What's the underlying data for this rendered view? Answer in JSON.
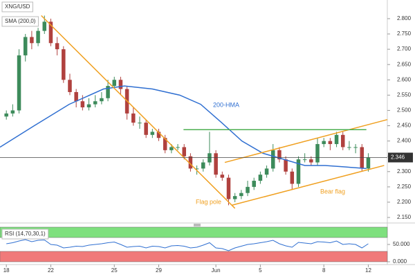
{
  "chart_data": [
    {
      "type": "candlestick",
      "title": "XNG/USD",
      "x": [
        0,
        1,
        2,
        3,
        4,
        5,
        6,
        7,
        8,
        9,
        10,
        11,
        12,
        13,
        14,
        15,
        16,
        17,
        18,
        19,
        20,
        21,
        22,
        23,
        24,
        25,
        26,
        27,
        28,
        29,
        30,
        31,
        32,
        33,
        34,
        35,
        36,
        37,
        38,
        39,
        40,
        41,
        42,
        43,
        44,
        45,
        46,
        47,
        48,
        49,
        50,
        51,
        52,
        53,
        54,
        55,
        56,
        57
      ],
      "open": [
        2.48,
        2.49,
        2.5,
        2.68,
        2.74,
        2.72,
        2.76,
        2.79,
        2.72,
        2.7,
        2.6,
        2.56,
        2.53,
        2.51,
        2.52,
        2.53,
        2.54,
        2.58,
        2.6,
        2.57,
        2.49,
        2.46,
        2.46,
        2.42,
        2.43,
        2.41,
        2.37,
        2.38,
        2.38,
        2.35,
        2.31,
        2.31,
        2.33,
        2.36,
        2.29,
        2.28,
        2.21,
        2.22,
        2.23,
        2.25,
        2.27,
        2.29,
        2.31,
        2.37,
        2.34,
        2.3,
        2.26,
        2.34,
        2.34,
        2.33,
        2.39,
        2.4,
        2.39,
        2.42,
        2.38,
        2.38,
        2.38,
        2.31
      ],
      "high": [
        2.5,
        2.52,
        2.7,
        2.75,
        2.76,
        2.77,
        2.81,
        2.8,
        2.74,
        2.71,
        2.62,
        2.57,
        2.55,
        2.54,
        2.55,
        2.56,
        2.6,
        2.61,
        2.61,
        2.58,
        2.51,
        2.48,
        2.47,
        2.44,
        2.44,
        2.42,
        2.39,
        2.39,
        2.39,
        2.36,
        2.32,
        2.34,
        2.43,
        2.37,
        2.3,
        2.29,
        2.23,
        2.24,
        2.27,
        2.28,
        2.3,
        2.32,
        2.39,
        2.38,
        2.35,
        2.31,
        2.35,
        2.36,
        2.35,
        2.41,
        2.41,
        2.41,
        2.43,
        2.43,
        2.4,
        2.39,
        2.39,
        2.36
      ],
      "low": [
        2.47,
        2.48,
        2.49,
        2.66,
        2.7,
        2.71,
        2.75,
        2.71,
        2.68,
        2.59,
        2.55,
        2.51,
        2.5,
        2.5,
        2.51,
        2.52,
        2.53,
        2.57,
        2.55,
        2.47,
        2.45,
        2.44,
        2.41,
        2.41,
        2.4,
        2.36,
        2.36,
        2.37,
        2.34,
        2.3,
        2.29,
        2.3,
        2.32,
        2.28,
        2.27,
        2.19,
        2.2,
        2.21,
        2.22,
        2.24,
        2.26,
        2.28,
        2.3,
        2.33,
        2.29,
        2.24,
        2.25,
        2.33,
        2.32,
        2.32,
        2.38,
        2.37,
        2.38,
        2.37,
        2.37,
        2.36,
        2.3,
        2.3
      ],
      "close": [
        2.49,
        2.5,
        2.68,
        2.74,
        2.72,
        2.76,
        2.79,
        2.72,
        2.7,
        2.6,
        2.56,
        2.53,
        2.51,
        2.52,
        2.53,
        2.54,
        2.58,
        2.6,
        2.57,
        2.49,
        2.46,
        2.46,
        2.42,
        2.43,
        2.41,
        2.37,
        2.38,
        2.38,
        2.35,
        2.31,
        2.31,
        2.33,
        2.36,
        2.29,
        2.28,
        2.21,
        2.22,
        2.23,
        2.25,
        2.27,
        2.29,
        2.31,
        2.37,
        2.34,
        2.3,
        2.26,
        2.34,
        2.34,
        2.33,
        2.39,
        2.4,
        2.39,
        2.42,
        2.38,
        2.38,
        2.38,
        2.31,
        2.346
      ],
      "up_color": "#3d8b5b",
      "down_color": "#b0413e",
      "series": [
        {
          "name": "SMA (200,0)",
          "color": "#2f6fd1",
          "x": [
            -1,
            4.4,
            9.9,
            15.3,
            18.6,
            23,
            27.3,
            30.6,
            33.9,
            37.1,
            40.4,
            43.7,
            47,
            50.2,
            53.5,
            56.7
          ],
          "values": [
            2.38,
            2.45,
            2.52,
            2.57,
            2.58,
            2.57,
            2.55,
            2.52,
            2.46,
            2.4,
            2.36,
            2.34,
            2.32,
            2.32,
            2.315,
            2.31
          ]
        }
      ],
      "lines": [
        {
          "color": "#f0a020",
          "x": [
            5.5,
            36
          ],
          "values": [
            2.81,
            2.18
          ]
        },
        {
          "color": "#f0a020",
          "x": [
            34.4,
            60
          ],
          "values": [
            2.33,
            2.47
          ]
        },
        {
          "color": "#f0a020",
          "x": [
            35.5,
            59.5
          ],
          "values": [
            2.19,
            2.32
          ]
        },
        {
          "color": "#4caf50",
          "x": [
            27.9,
            56.7
          ],
          "values": [
            2.437,
            2.437
          ]
        }
      ],
      "last_value": 2.346,
      "annotations": [
        {
          "text": "200-HMA",
          "color": "#2f6fd1"
        },
        {
          "text": "Flag pole",
          "color": "#f0a020"
        },
        {
          "text": "Bear flag",
          "color": "#f0a020"
        }
      ],
      "xlim": [
        -1,
        60
      ],
      "xticks": [
        {
          "value": 0,
          "label": "18"
        },
        {
          "value": 7,
          "label": "22"
        },
        {
          "value": 17,
          "label": "25"
        },
        {
          "value": 24,
          "label": "29"
        },
        {
          "value": 33,
          "label": "Jun"
        },
        {
          "value": 40,
          "label": "5"
        },
        {
          "value": 50,
          "label": "8"
        },
        {
          "value": 57,
          "label": "12"
        }
      ],
      "ylim": [
        2.132,
        2.861
      ],
      "yticks": [
        {
          "value": 2.15,
          "label": "2.150"
        },
        {
          "value": 2.2,
          "label": "2.200"
        },
        {
          "value": 2.25,
          "label": "2.250"
        },
        {
          "value": 2.3,
          "label": "2.300"
        },
        {
          "value": 2.35,
          "label": "2.350"
        },
        {
          "value": 2.4,
          "label": "2.400"
        },
        {
          "value": 2.45,
          "label": "2.450"
        },
        {
          "value": 2.5,
          "label": "2.500"
        },
        {
          "value": 2.55,
          "label": "2.550"
        },
        {
          "value": 2.6,
          "label": "2.600"
        },
        {
          "value": 2.65,
          "label": "2.650"
        },
        {
          "value": 2.7,
          "label": "2.700"
        },
        {
          "value": 2.75,
          "label": "2.750"
        },
        {
          "value": 2.8,
          "label": "2.800"
        }
      ]
    },
    {
      "type": "line",
      "title": "RSI (14,70,30,1)",
      "x": [
        0,
        1,
        2,
        3,
        4,
        5,
        6,
        7,
        8,
        9,
        10,
        11,
        12,
        13,
        14,
        15,
        16,
        17,
        18,
        19,
        20,
        21,
        22,
        23,
        24,
        25,
        26,
        27,
        28,
        29,
        30,
        31,
        32,
        33,
        34,
        35,
        36,
        37,
        38,
        39,
        40,
        41,
        42,
        43,
        44,
        45,
        46,
        47,
        48,
        49,
        50,
        51,
        52,
        53,
        54,
        55,
        56,
        57
      ],
      "values": [
        52,
        55,
        60,
        64,
        58,
        62,
        63,
        50,
        48,
        40,
        42,
        45,
        44,
        48,
        50,
        52,
        55,
        57,
        50,
        42,
        44,
        45,
        40,
        45,
        44,
        40,
        46,
        47,
        45,
        40,
        42,
        48,
        55,
        40,
        38,
        32,
        40,
        45,
        50,
        52,
        55,
        58,
        62,
        52,
        46,
        42,
        56,
        54,
        52,
        58,
        57,
        55,
        60,
        50,
        52,
        50,
        40,
        52
      ],
      "color": "#2f6fd1",
      "bands": [
        {
          "range": [
            70,
            100
          ],
          "color": "#7ee07e"
        },
        {
          "range": [
            0,
            30
          ],
          "color": "#f07a7a"
        }
      ],
      "xlim": [
        -1,
        60
      ],
      "ylim": [
        0,
        100
      ],
      "yticks": [
        {
          "value": 0,
          "label": "0.000"
        },
        {
          "value": 50,
          "label": "50.000"
        }
      ]
    }
  ]
}
